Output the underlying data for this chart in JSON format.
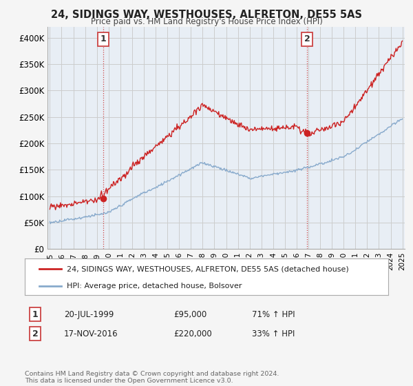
{
  "title": "24, SIDINGS WAY, WESTHOUSES, ALFRETON, DE55 5AS",
  "subtitle": "Price paid vs. HM Land Registry's House Price Index (HPI)",
  "ylabel_ticks": [
    "£0",
    "£50K",
    "£100K",
    "£150K",
    "£200K",
    "£250K",
    "£300K",
    "£350K",
    "£400K"
  ],
  "ytick_vals": [
    0,
    50000,
    100000,
    150000,
    200000,
    250000,
    300000,
    350000,
    400000
  ],
  "ylim": [
    0,
    420000
  ],
  "xlim_start": 1994.8,
  "xlim_end": 2025.2,
  "sale1_date": 1999.55,
  "sale1_price": 95000,
  "sale1_label": "1",
  "sale2_date": 2016.88,
  "sale2_price": 220000,
  "sale2_label": "2",
  "legend_line1": "24, SIDINGS WAY, WESTHOUSES, ALFRETON, DE55 5AS (detached house)",
  "legend_line2": "HPI: Average price, detached house, Bolsover",
  "table_row1": [
    "1",
    "20-JUL-1999",
    "£95,000",
    "71% ↑ HPI"
  ],
  "table_row2": [
    "2",
    "17-NOV-2016",
    "£220,000",
    "33% ↑ HPI"
  ],
  "footer": "Contains HM Land Registry data © Crown copyright and database right 2024.\nThis data is licensed under the Open Government Licence v3.0.",
  "color_red": "#cc2222",
  "color_blue": "#88aacc",
  "color_grid": "#cccccc",
  "color_dashed": "#cc4444",
  "plot_bg": "#e8eef5",
  "background": "#f5f5f5"
}
